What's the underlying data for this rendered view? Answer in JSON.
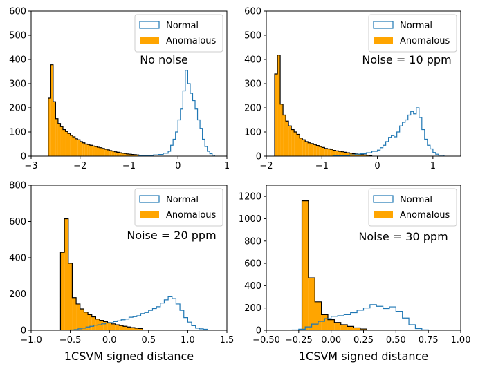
{
  "colors": {
    "normal": "#1f77b4",
    "anomalous": "#ffa500",
    "anomalous_edge": "#000000",
    "legend_edge": "#cccccc"
  },
  "chart_data": [
    {
      "type": "histogram",
      "annotation": "No noise",
      "xlabel": "",
      "xlim": [
        -3,
        1
      ],
      "ylim": [
        0,
        600
      ],
      "xticks": [
        -3,
        -2,
        -1,
        0,
        1
      ],
      "xtick_labels": [
        "−3",
        "−2",
        "−1",
        "0",
        "1"
      ],
      "yticks": [
        0,
        100,
        200,
        300,
        400,
        500,
        600
      ],
      "ytick_labels": [
        "0",
        "100",
        "200",
        "300",
        "400",
        "500",
        "600"
      ],
      "legend": {
        "placement": "top-right",
        "entries": [
          "Normal",
          "Anomalous"
        ]
      },
      "series": [
        {
          "name": "Normal",
          "style": "step",
          "edges": [
            -0.8,
            -0.7,
            -0.6,
            -0.5,
            -0.4,
            -0.3,
            -0.2,
            -0.15,
            -0.1,
            -0.05,
            0.0,
            0.05,
            0.1,
            0.15,
            0.2,
            0.25,
            0.3,
            0.35,
            0.4,
            0.45,
            0.5,
            0.55,
            0.6,
            0.65,
            0.7,
            0.75
          ],
          "counts": [
            1,
            2,
            3,
            5,
            7,
            12,
            20,
            45,
            70,
            100,
            150,
            195,
            270,
            355,
            300,
            260,
            230,
            195,
            150,
            115,
            70,
            40,
            20,
            10,
            4
          ]
        },
        {
          "name": "Anomalous",
          "style": "filled",
          "edges": [
            -2.65,
            -2.6,
            -2.55,
            -2.5,
            -2.45,
            -2.4,
            -2.35,
            -2.3,
            -2.25,
            -2.2,
            -2.15,
            -2.1,
            -2.05,
            -2.0,
            -1.95,
            -1.9,
            -1.85,
            -1.8,
            -1.75,
            -1.7,
            -1.65,
            -1.6,
            -1.55,
            -1.5,
            -1.45,
            -1.4,
            -1.35,
            -1.3,
            -1.25,
            -1.2,
            -1.15,
            -1.1,
            -1.05,
            -1.0,
            -0.95,
            -0.9,
            -0.85,
            -0.8,
            -0.75,
            -0.7,
            -0.65,
            -0.6,
            -0.55,
            -0.5
          ],
          "counts": [
            240,
            378,
            225,
            155,
            135,
            122,
            110,
            102,
            94,
            86,
            80,
            72,
            68,
            60,
            55,
            50,
            48,
            45,
            42,
            40,
            37,
            35,
            32,
            29,
            26,
            23,
            21,
            18,
            16,
            14,
            12,
            11,
            9,
            8,
            7,
            6,
            5,
            4,
            4,
            3,
            3,
            2,
            1
          ]
        }
      ]
    },
    {
      "type": "histogram",
      "annotation": "Noise = 10 ppm",
      "xlabel": "",
      "xlim": [
        -2,
        1.5
      ],
      "ylim": [
        0,
        600
      ],
      "xticks": [
        -2,
        -1,
        0,
        1
      ],
      "xtick_labels": [
        "−2",
        "−1",
        "0",
        "1"
      ],
      "yticks": [
        0,
        100,
        200,
        300,
        400,
        500,
        600
      ],
      "ytick_labels": [
        "0",
        "100",
        "200",
        "300",
        "400",
        "500",
        "600"
      ],
      "legend": {
        "placement": "top-right",
        "entries": [
          "Normal",
          "Anomalous"
        ]
      },
      "series": [
        {
          "name": "Normal",
          "style": "step",
          "edges": [
            -0.8,
            -0.7,
            -0.6,
            -0.5,
            -0.4,
            -0.3,
            -0.2,
            -0.1,
            0.0,
            0.05,
            0.1,
            0.15,
            0.2,
            0.25,
            0.3,
            0.35,
            0.4,
            0.45,
            0.5,
            0.55,
            0.6,
            0.65,
            0.7,
            0.75,
            0.8,
            0.85,
            0.9,
            0.95,
            1.0,
            1.05,
            1.1,
            1.2
          ],
          "counts": [
            1,
            2,
            3,
            5,
            8,
            10,
            14,
            20,
            25,
            35,
            45,
            60,
            78,
            85,
            80,
            100,
            125,
            140,
            150,
            170,
            185,
            175,
            200,
            160,
            110,
            70,
            45,
            30,
            15,
            8,
            4
          ]
        },
        {
          "name": "Anomalous",
          "style": "filled",
          "edges": [
            -1.85,
            -1.8,
            -1.75,
            -1.7,
            -1.65,
            -1.6,
            -1.55,
            -1.5,
            -1.45,
            -1.4,
            -1.35,
            -1.3,
            -1.25,
            -1.2,
            -1.15,
            -1.1,
            -1.05,
            -1.0,
            -0.95,
            -0.9,
            -0.85,
            -0.8,
            -0.75,
            -0.7,
            -0.65,
            -0.6,
            -0.55,
            -0.5,
            -0.45,
            -0.4,
            -0.35,
            -0.3,
            -0.25,
            -0.2,
            -0.15,
            -0.1
          ],
          "counts": [
            340,
            418,
            215,
            170,
            145,
            125,
            110,
            100,
            90,
            75,
            68,
            60,
            55,
            52,
            48,
            44,
            40,
            36,
            32,
            30,
            28,
            24,
            22,
            20,
            18,
            16,
            14,
            12,
            10,
            9,
            8,
            6,
            5,
            4,
            3
          ]
        }
      ]
    },
    {
      "type": "histogram",
      "annotation": "Noise = 20 ppm",
      "xlabel": "1CSVM signed distance",
      "xlim": [
        -1.0,
        1.5
      ],
      "ylim": [
        0,
        800
      ],
      "xticks": [
        -1.0,
        -0.5,
        0.0,
        0.5,
        1.0,
        1.5
      ],
      "xtick_labels": [
        "−1.0",
        "−0.5",
        "0.0",
        "0.5",
        "1.0",
        "1.5"
      ],
      "yticks": [
        0,
        200,
        400,
        600,
        800
      ],
      "ytick_labels": [
        "0",
        "200",
        "400",
        "600",
        "800"
      ],
      "legend": {
        "placement": "top-right",
        "entries": [
          "Normal",
          "Anomalous"
        ]
      },
      "series": [
        {
          "name": "Normal",
          "style": "step",
          "edges": [
            -0.5,
            -0.45,
            -0.4,
            -0.35,
            -0.3,
            -0.25,
            -0.2,
            -0.15,
            -0.1,
            -0.05,
            0.0,
            0.05,
            0.1,
            0.15,
            0.2,
            0.25,
            0.3,
            0.35,
            0.4,
            0.45,
            0.5,
            0.55,
            0.6,
            0.65,
            0.7,
            0.75,
            0.8,
            0.85,
            0.9,
            0.95,
            1.0,
            1.05,
            1.1,
            1.15,
            1.2,
            1.25
          ],
          "counts": [
            2,
            4,
            8,
            12,
            18,
            22,
            28,
            30,
            35,
            40,
            42,
            48,
            52,
            58,
            62,
            72,
            75,
            80,
            92,
            98,
            110,
            120,
            130,
            150,
            168,
            185,
            175,
            145,
            110,
            70,
            45,
            25,
            12,
            8,
            6
          ]
        },
        {
          "name": "Anomalous",
          "style": "filled",
          "edges": [
            -0.625,
            -0.575,
            -0.525,
            -0.475,
            -0.425,
            -0.375,
            -0.325,
            -0.275,
            -0.225,
            -0.175,
            -0.125,
            -0.075,
            -0.025,
            0.025,
            0.075,
            0.125,
            0.175,
            0.225,
            0.275,
            0.325,
            0.375,
            0.425
          ],
          "counts": [
            430,
            615,
            370,
            180,
            145,
            118,
            100,
            86,
            74,
            62,
            55,
            48,
            42,
            35,
            30,
            26,
            22,
            18,
            15,
            12,
            10
          ]
        }
      ]
    },
    {
      "type": "histogram",
      "annotation": "Noise = 30 ppm",
      "xlabel": "1CSVM signed distance",
      "xlim": [
        -0.5,
        1.0
      ],
      "ylim": [
        0,
        1300
      ],
      "xticks": [
        -0.5,
        -0.25,
        0.0,
        0.25,
        0.5,
        0.75,
        1.0
      ],
      "xtick_labels": [
        "−0.50",
        "−0.25",
        "0.00",
        "0.25",
        "0.50",
        "0.75",
        "1.00"
      ],
      "yticks": [
        0,
        200,
        400,
        600,
        800,
        1000,
        1200
      ],
      "ytick_labels": [
        "0",
        "200",
        "400",
        "600",
        "800",
        "1000",
        "1200"
      ],
      "legend": {
        "placement": "top-right",
        "entries": [
          "Normal",
          "Anomalous"
        ]
      },
      "series": [
        {
          "name": "Normal",
          "style": "step",
          "edges": [
            -0.3,
            -0.25,
            -0.2,
            -0.15,
            -0.1,
            -0.05,
            0.0,
            0.05,
            0.1,
            0.15,
            0.2,
            0.25,
            0.3,
            0.35,
            0.4,
            0.45,
            0.5,
            0.55,
            0.6,
            0.65,
            0.7,
            0.75
          ],
          "counts": [
            3,
            10,
            30,
            55,
            80,
            105,
            125,
            130,
            140,
            158,
            180,
            200,
            230,
            215,
            195,
            210,
            170,
            110,
            50,
            15,
            4
          ]
        },
        {
          "name": "Anomalous",
          "style": "filled",
          "edges": [
            -0.225,
            -0.175,
            -0.125,
            -0.075,
            -0.025,
            0.025,
            0.075,
            0.125,
            0.175,
            0.225,
            0.275
          ],
          "counts": [
            1160,
            470,
            255,
            140,
            95,
            70,
            50,
            35,
            22,
            12
          ]
        }
      ]
    }
  ]
}
